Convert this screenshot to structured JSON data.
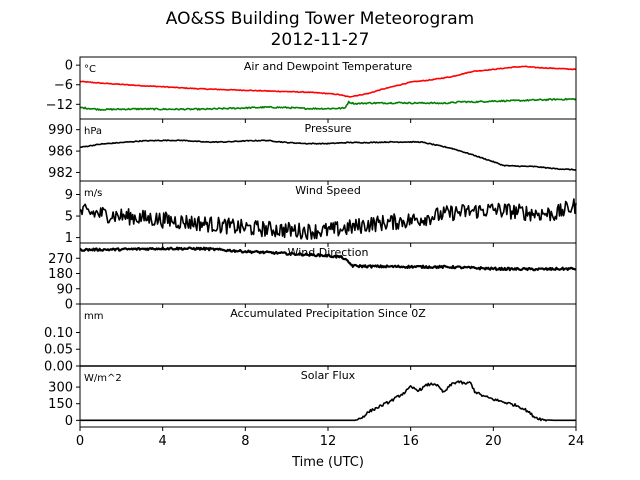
{
  "title": "AO&SS Building Tower Meteorogram",
  "subtitle": "2012-11-27",
  "xlabel": "Time (UTC)",
  "x_ticks": [
    0,
    4,
    8,
    12,
    16,
    20,
    24
  ],
  "xlim": [
    0,
    24
  ],
  "chart_data": [
    {
      "type": "line",
      "title": "Air and Dewpoint Temperature",
      "unit": "°C",
      "ylim": [
        -16.5,
        2.5
      ],
      "y_ticks": [
        0,
        -6,
        -12
      ],
      "y_tick_labels": [
        "0",
        "−6",
        "−12"
      ],
      "series": [
        {
          "color": "#ff0000",
          "points": [
            [
              0,
              -5.0
            ],
            [
              1,
              -5.5
            ],
            [
              2,
              -5.9
            ],
            [
              3,
              -6.3
            ],
            [
              4,
              -6.6
            ],
            [
              5,
              -7.0
            ],
            [
              6,
              -7.3
            ],
            [
              7,
              -7.5
            ],
            [
              8,
              -7.7
            ],
            [
              9,
              -7.9
            ],
            [
              10,
              -8.1
            ],
            [
              11,
              -8.3
            ],
            [
              12,
              -8.7
            ],
            [
              12.5,
              -9.0
            ],
            [
              13,
              -9.7
            ],
            [
              13.5,
              -9.2
            ],
            [
              14,
              -8.6
            ],
            [
              14.5,
              -7.6
            ],
            [
              15,
              -6.8
            ],
            [
              16,
              -5.2
            ],
            [
              17,
              -4.5
            ],
            [
              18,
              -3.5
            ],
            [
              19,
              -1.9
            ],
            [
              20,
              -1.3
            ],
            [
              21,
              -0.6
            ],
            [
              21.5,
              -0.4
            ],
            [
              22,
              -0.7
            ],
            [
              23,
              -1.0
            ],
            [
              24,
              -1.3
            ]
          ],
          "noise": 0.12
        },
        {
          "color": "#008000",
          "points": [
            [
              0,
              -13.0
            ],
            [
              1,
              -13.6
            ],
            [
              2,
              -13.5
            ],
            [
              3,
              -13.4
            ],
            [
              4,
              -13.5
            ],
            [
              5,
              -13.5
            ],
            [
              6,
              -13.5
            ],
            [
              7,
              -13.3
            ],
            [
              8,
              -13.1
            ],
            [
              9,
              -12.9
            ],
            [
              10,
              -13.0
            ],
            [
              11,
              -13.3
            ],
            [
              12,
              -13.3
            ],
            [
              12.8,
              -13.2
            ],
            [
              13,
              -11.3
            ],
            [
              13.3,
              -11.8
            ],
            [
              14,
              -11.6
            ],
            [
              15,
              -11.6
            ],
            [
              15.5,
              -11.5
            ],
            [
              16,
              -11.6
            ],
            [
              17,
              -11.6
            ],
            [
              17.5,
              -11.7
            ],
            [
              18,
              -11.5
            ],
            [
              18.5,
              -11.2
            ],
            [
              19,
              -11.3
            ],
            [
              20,
              -11.0
            ],
            [
              21,
              -10.9
            ],
            [
              22,
              -10.7
            ],
            [
              23,
              -10.5
            ],
            [
              24,
              -10.4
            ]
          ],
          "noise": 0.22
        }
      ]
    },
    {
      "type": "line",
      "title": "Pressure",
      "unit": "hPa",
      "ylim": [
        980.4,
        992.0
      ],
      "y_ticks": [
        990,
        986,
        982
      ],
      "y_tick_labels": [
        "990",
        "986",
        "982"
      ],
      "series": [
        {
          "color": "#000000",
          "points": [
            [
              0,
              986.7
            ],
            [
              1,
              987.3
            ],
            [
              2,
              987.6
            ],
            [
              3,
              987.9
            ],
            [
              4,
              988.0
            ],
            [
              5,
              988.0
            ],
            [
              6,
              987.7
            ],
            [
              7,
              987.7
            ],
            [
              8,
              987.9
            ],
            [
              9,
              988.0
            ],
            [
              10,
              987.6
            ],
            [
              11,
              987.4
            ],
            [
              12,
              987.4
            ],
            [
              13,
              987.6
            ],
            [
              14,
              987.6
            ],
            [
              15,
              987.7
            ],
            [
              16,
              987.7
            ],
            [
              16.5,
              987.7
            ],
            [
              17,
              987.3
            ],
            [
              18,
              986.5
            ],
            [
              19,
              985.3
            ],
            [
              20,
              984.0
            ],
            [
              20.5,
              983.3
            ],
            [
              21,
              983.2
            ],
            [
              22,
              983.1
            ],
            [
              23,
              982.7
            ],
            [
              24,
              982.5
            ]
          ],
          "noise": 0.08
        }
      ]
    },
    {
      "type": "line",
      "title": "Wind Speed",
      "unit": "m/s",
      "ylim": [
        0,
        11.5
      ],
      "y_ticks": [
        9,
        5,
        1
      ],
      "y_tick_labels": [
        "9",
        "5",
        "1"
      ],
      "series": [
        {
          "color": "#000000",
          "points": [
            [
              0,
              5.8
            ],
            [
              2,
              5.0
            ],
            [
              4,
              4.3
            ],
            [
              6,
              3.6
            ],
            [
              8,
              2.8
            ],
            [
              10,
              2.4
            ],
            [
              11,
              2.2
            ],
            [
              12,
              2.3
            ],
            [
              13,
              2.8
            ],
            [
              14,
              3.5
            ],
            [
              16,
              4.2
            ],
            [
              18,
              5.6
            ],
            [
              20,
              6.2
            ],
            [
              22,
              5.5
            ],
            [
              23,
              5.4
            ],
            [
              24,
              7.0
            ]
          ],
          "noise": 1.5
        }
      ]
    },
    {
      "type": "line",
      "title": "Wind Direction",
      "unit": "",
      "ylim": [
        0,
        360
      ],
      "y_ticks": [
        270,
        180,
        90,
        0
      ],
      "y_tick_labels": [
        "270",
        "180",
        "90",
        "0"
      ],
      "series": [
        {
          "color": "#000000",
          "points": [
            [
              0,
              320
            ],
            [
              2,
              322
            ],
            [
              4,
              328
            ],
            [
              6,
              326
            ],
            [
              8,
              310
            ],
            [
              10,
              298
            ],
            [
              12,
              285
            ],
            [
              12.7,
              275
            ],
            [
              13.2,
              225
            ],
            [
              14,
              222
            ],
            [
              16,
              220
            ],
            [
              18,
              218
            ],
            [
              20,
              208
            ],
            [
              22,
              205
            ],
            [
              24,
              208
            ]
          ],
          "noise": 7
        }
      ]
    },
    {
      "type": "line",
      "title": "Accumulated Precipitation Since 0Z",
      "unit": "mm",
      "ylim": [
        0,
        0.185
      ],
      "y_ticks": [
        0.1,
        0.05,
        0.0
      ],
      "y_tick_labels": [
        "0.10",
        "0.05",
        "0.00"
      ],
      "series": [
        {
          "color": "#000000",
          "points": [
            [
              0,
              0.0
            ],
            [
              24,
              0.0
            ]
          ],
          "noise": 0
        }
      ]
    },
    {
      "type": "line",
      "title": "Solar Flux",
      "unit": "W/m^2",
      "ylim": [
        -60,
        490
      ],
      "y_ticks": [
        300,
        150,
        0
      ],
      "y_tick_labels": [
        "300",
        "150",
        "0"
      ],
      "series": [
        {
          "color": "#000000",
          "points": [
            [
              0,
              0
            ],
            [
              13.3,
              0
            ],
            [
              13.6,
              20
            ],
            [
              14,
              80
            ],
            [
              15,
              170
            ],
            [
              15.7,
              250
            ],
            [
              16,
              300
            ],
            [
              16.4,
              270
            ],
            [
              16.8,
              320
            ],
            [
              17.2,
              330
            ],
            [
              17.6,
              250
            ],
            [
              18,
              330
            ],
            [
              18.3,
              350
            ],
            [
              18.6,
              330
            ],
            [
              18.9,
              340
            ],
            [
              19.1,
              260
            ],
            [
              19.5,
              220
            ],
            [
              20,
              190
            ],
            [
              20.4,
              170
            ],
            [
              20.8,
              150
            ],
            [
              21.2,
              130
            ],
            [
              21.6,
              90
            ],
            [
              22,
              30
            ],
            [
              22.4,
              5
            ],
            [
              23,
              0
            ],
            [
              24,
              0
            ]
          ],
          "noise": 12
        }
      ]
    }
  ]
}
